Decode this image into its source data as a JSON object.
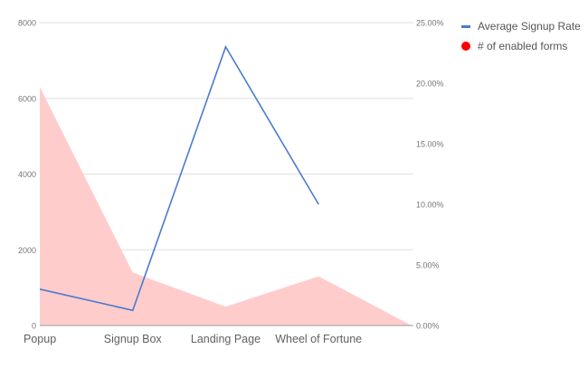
{
  "chart_data": {
    "type": "line+area",
    "title": "",
    "xlabel": "",
    "ylabel_left": "",
    "ylabel_right": "",
    "categories": [
      "Popup",
      "Signup Box",
      "Landing Page",
      "Wheel of Fortune",
      ""
    ],
    "series": [
      {
        "name": "# of enabled forms",
        "type": "area",
        "axis": "left",
        "color": "#ff0000",
        "fill": "#ffcccc",
        "values": [
          6300,
          1400,
          500,
          1300,
          0
        ]
      },
      {
        "name": "Average Signup Rate",
        "type": "line",
        "axis": "right",
        "color": "#4a7bd0",
        "values": [
          3.0,
          1.25,
          23.0,
          10.0,
          null
        ]
      }
    ],
    "left_axis": {
      "min": 0,
      "max": 8000,
      "ticks": [
        "0",
        "2000",
        "4000",
        "6000",
        "8000"
      ]
    },
    "right_axis": {
      "min": 0,
      "max": 25,
      "ticks": [
        "0.00%",
        "5.00%",
        "10.00%",
        "15.00%",
        "20.00%",
        "25.00%"
      ]
    },
    "grid": true,
    "legend_position": "right"
  },
  "legend": {
    "items": [
      {
        "label": "Average Signup Rate",
        "marker": "line",
        "color": "#4a7bd0"
      },
      {
        "label": "# of enabled forms",
        "marker": "dot",
        "color": "#ff0000"
      }
    ]
  }
}
